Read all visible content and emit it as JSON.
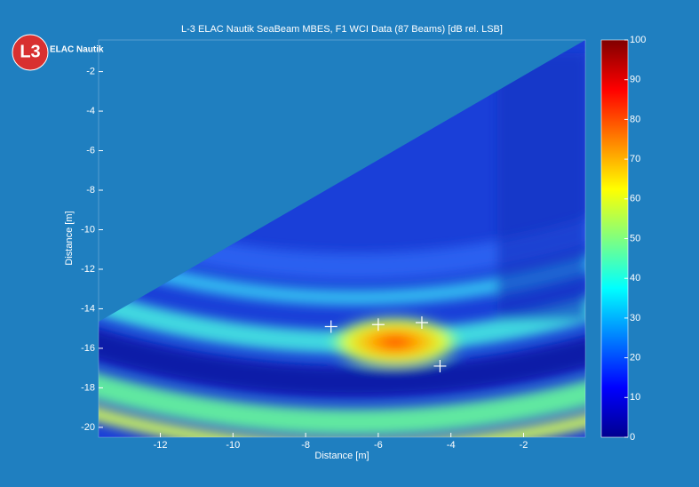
{
  "chart_data": {
    "type": "heatmap",
    "title": "L-3 ELAC Nautik SeaBeam MBES, F1  WCI Data (87 Beams) [dB rel. LSB]",
    "x_label": "Distance [m]",
    "y_label": "Distance [m]",
    "xlim": [
      -13.7,
      -0.3
    ],
    "xticks": [
      -12,
      -10,
      -8,
      -6,
      -4,
      -2
    ],
    "ylim": [
      -20.5,
      -0.4
    ],
    "yticks": [
      -20,
      -18,
      -16,
      -14,
      -12,
      -10,
      -8,
      -6,
      -4,
      -2
    ],
    "colorbar": {
      "lim": [
        0,
        100
      ],
      "ticks": [
        0,
        10,
        20,
        30,
        40,
        50,
        60,
        70,
        80,
        90,
        100
      ]
    },
    "markers": {
      "x": [
        -7.3,
        -6.0,
        -4.8,
        -4.3
      ],
      "y": [
        -14.9,
        -14.8,
        -14.7,
        -16.9
      ]
    }
  },
  "logo": {
    "mark": "L3",
    "text": "ELAC Nautik"
  }
}
